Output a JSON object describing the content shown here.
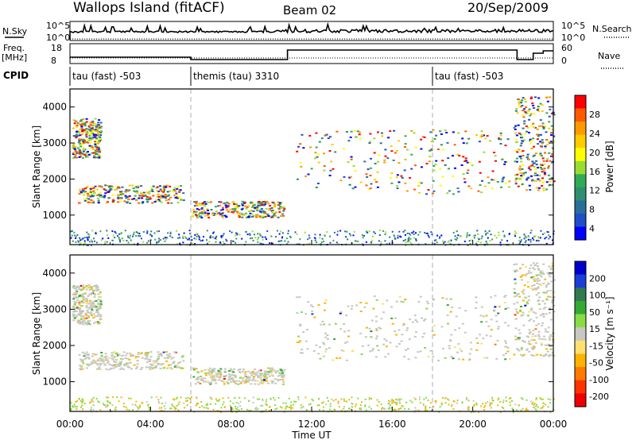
{
  "header": {
    "station": "Wallops Island (fitACF)",
    "beam": "Beam 02",
    "date": "20/Sep/2009"
  },
  "left_labels": {
    "nsky": "N.Sky",
    "freq": "Freq.",
    "freq_unit": "[MHz]",
    "cpid": "CPID"
  },
  "right_labels": {
    "nsearch": "N.Search",
    "nave": "Nave"
  },
  "panel_ticks": {
    "noise_left": [
      "10^5",
      "10^0"
    ],
    "noise_right": [
      "10^5",
      "10^0"
    ],
    "freq_left": [
      "18",
      "8"
    ],
    "freq_right": [
      "60",
      "0"
    ]
  },
  "cpid_segments": [
    {
      "label": "tau (fast) -503",
      "start_hour": 0
    },
    {
      "label": "themis (tau) 3310",
      "start_hour": 6
    },
    {
      "label": "tau (fast) -503",
      "start_hour": 18
    }
  ],
  "power_colorbar": {
    "label": "Power [dB]",
    "ticks": [
      "28",
      "24",
      "20",
      "16",
      "12",
      "8",
      "4"
    ],
    "colors": [
      "#ff0000",
      "#ff5a00",
      "#ff9900",
      "#ffcc00",
      "#ffff00",
      "#99dd33",
      "#33aa55",
      "#2f8f6f",
      "#2a6e9a",
      "#1f4fc8",
      "#0000ff"
    ]
  },
  "velocity_colorbar": {
    "label": "Velocity [m s⁻¹]",
    "ticks": [
      "200",
      "100",
      "50",
      "15",
      "-15",
      "-50",
      "-100",
      "-200"
    ],
    "colors": [
      "#0000cc",
      "#1a3fd6",
      "#2f7a4f",
      "#33aa33",
      "#88dd44",
      "#c8c8c0",
      "#ffe070",
      "#ffb300",
      "#ff7a00",
      "#ff3300",
      "#ee0000"
    ]
  },
  "chart_data": {
    "type": "heatmap",
    "panels": [
      "Power [dB]",
      "Velocity [m s⁻¹]"
    ],
    "xlabel": "Time UT",
    "x_ticks": [
      "00:00",
      "04:00",
      "08:00",
      "12:00",
      "16:00",
      "20:00",
      "00:00"
    ],
    "x_range_hours": [
      0,
      24
    ],
    "ylabel": "Slant Range [km]",
    "y_ticks": [
      1000,
      2000,
      3000,
      4000
    ],
    "y_range_km": [
      180,
      4500
    ],
    "dashed_time_markers_hours": [
      6,
      18
    ],
    "echo_regions": [
      {
        "t0": 0.1,
        "t1": 1.5,
        "r0": 2600,
        "r1": 3700
      },
      {
        "t0": 0.4,
        "t1": 5.6,
        "r0": 1350,
        "r1": 1850
      },
      {
        "t0": 6.0,
        "t1": 10.6,
        "r0": 950,
        "r1": 1400
      },
      {
        "t0": 11.2,
        "t1": 21.8,
        "r0": 1600,
        "r1": 3400
      },
      {
        "t0": 22.0,
        "t1": 24.0,
        "r0": 1700,
        "r1": 4300
      }
    ],
    "near_range_clutter_km": [
      180,
      600
    ]
  }
}
